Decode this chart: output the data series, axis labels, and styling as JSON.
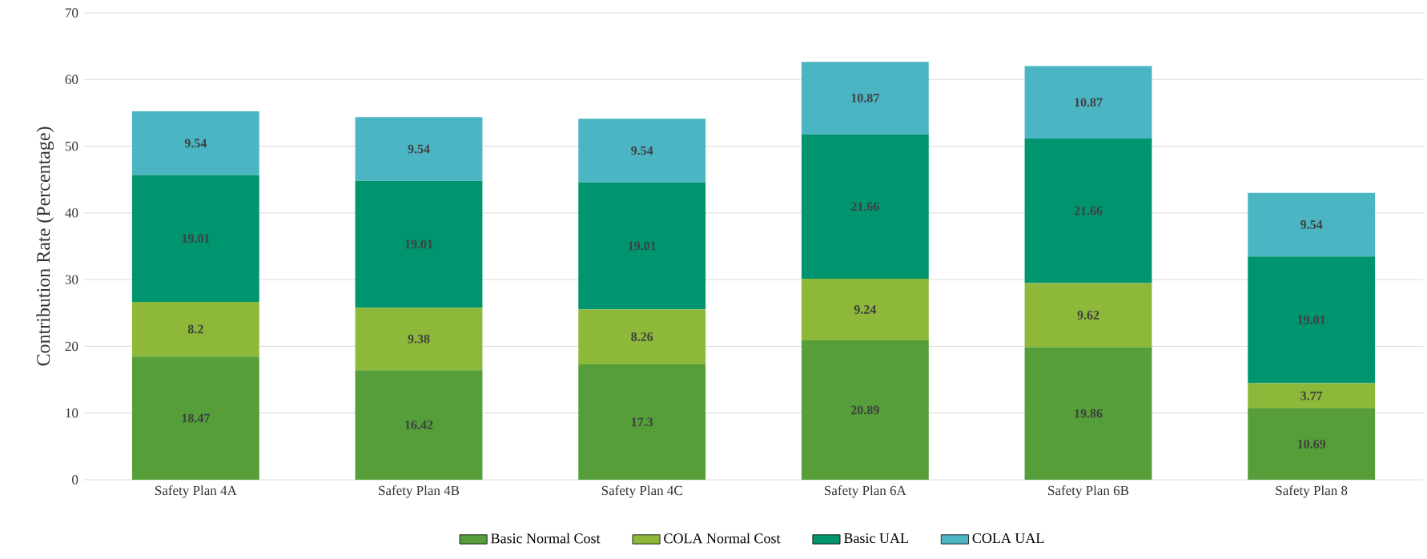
{
  "chart_data": {
    "type": "bar",
    "stacked": true,
    "ylabel": "Contribution Rate (Percentage)",
    "categories": [
      "Safety Plan 4A",
      "Safety Plan 4B",
      "Safety Plan 4C",
      "Safety Plan 6A",
      "Safety Plan 6B",
      "Safety Plan 8"
    ],
    "series": [
      {
        "name": "Basic Normal Cost",
        "color": "#559e3a",
        "values": [
          18.47,
          16.42,
          17.3,
          20.89,
          19.86,
          10.69
        ]
      },
      {
        "name": "COLA Normal Cost",
        "color": "#8db83a",
        "values": [
          8.2,
          9.38,
          8.26,
          9.24,
          9.62,
          3.77
        ]
      },
      {
        "name": "Basic UAL",
        "color": "#00956f",
        "values": [
          19.01,
          19.01,
          19.01,
          21.66,
          21.66,
          19.01
        ]
      },
      {
        "name": "COLA UAL",
        "color": "#4bb5c4",
        "values": [
          9.54,
          9.54,
          9.54,
          10.87,
          10.87,
          9.54
        ]
      }
    ],
    "ylim": [
      0,
      70
    ],
    "yticks": [
      0,
      10,
      20,
      30,
      40,
      50,
      60,
      70
    ],
    "grid": "y",
    "legend": "bottom",
    "data_labels": true
  }
}
